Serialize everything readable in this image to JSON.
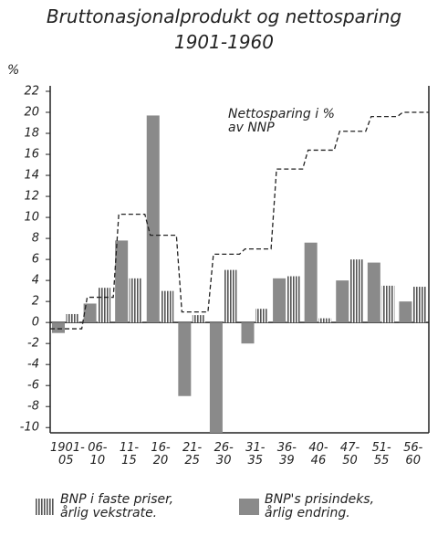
{
  "chart_data": {
    "type": "bar",
    "title": "Bruttonasjonalprodukt og nettosparing",
    "subtitle": "1901-1960",
    "y_label": "%",
    "categories": [
      "1901-\n05",
      "06-\n10",
      "11-\n15",
      "16-\n20",
      "21-\n25",
      "26-\n30",
      "31-\n35",
      "36-\n39",
      "40-\n46",
      "47-\n50",
      "51-\n55",
      "56-\n60"
    ],
    "series": [
      {
        "name": "BNP's prisindeks,\nårlig endring.",
        "color": "#8a8a8a",
        "pattern": "solid",
        "values": [
          -1.0,
          1.8,
          7.8,
          19.7,
          -7.0,
          -10.5,
          -2.0,
          4.2,
          7.6,
          4.0,
          5.7,
          2.0
        ]
      },
      {
        "name": "BNP i faste priser,\nårlig vekstrate.",
        "color": "#555555",
        "pattern": "striped",
        "values": [
          0.8,
          3.3,
          4.2,
          3.0,
          0.7,
          5.0,
          1.3,
          4.4,
          0.4,
          6.0,
          3.5,
          3.4
        ]
      },
      {
        "name": "Nettosparing i %\nav NNP",
        "color": "#222222",
        "type": "step",
        "values": [
          -0.6,
          2.4,
          10.3,
          8.3,
          1.0,
          6.5,
          7.0,
          14.6,
          16.4,
          18.2,
          19.6,
          20.0
        ]
      }
    ],
    "ylim": [
      -10.5,
      22
    ],
    "yticks": [
      -10,
      -8,
      -6,
      -4,
      -2,
      0,
      2,
      4,
      6,
      8,
      10,
      12,
      14,
      16,
      18,
      20,
      22
    ]
  }
}
